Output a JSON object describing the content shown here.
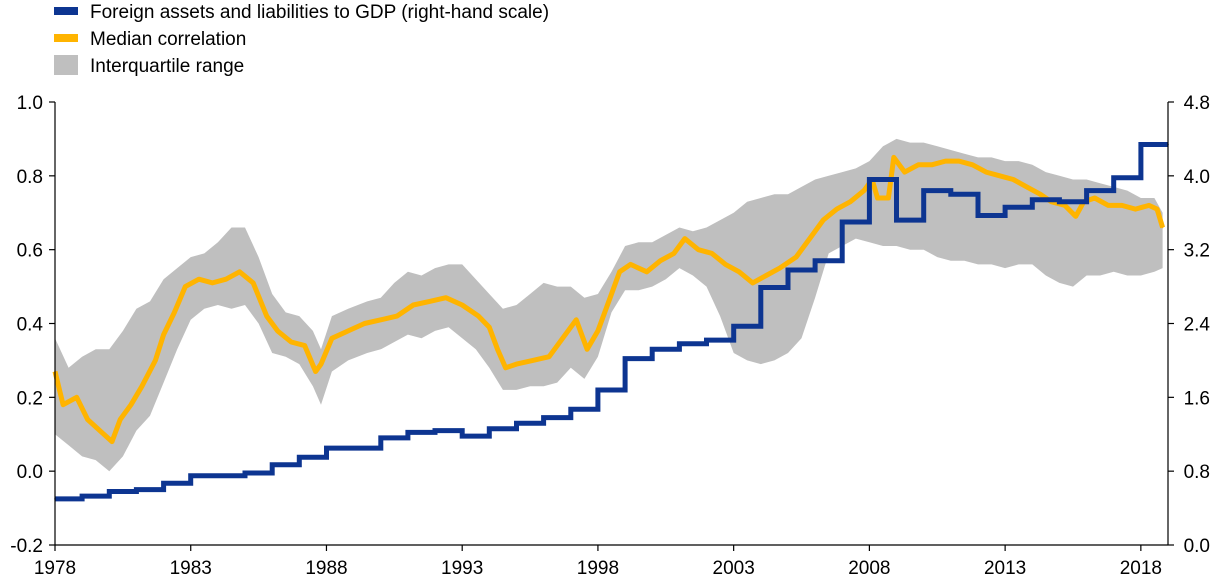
{
  "chart_data": {
    "type": "line",
    "legend_position": "top-left",
    "grid": false,
    "x_axis": {
      "range": [
        1978,
        2019
      ],
      "ticks": [
        "1978",
        "1983",
        "1988",
        "1993",
        "1998",
        "2003",
        "2008",
        "2013",
        "2018"
      ]
    },
    "y_left": {
      "range": [
        -0.2,
        1.0
      ],
      "ticks": [
        "1.0",
        "0.8",
        "0.6",
        "0.4",
        "0.2",
        "0.0",
        "-0.2"
      ]
    },
    "y_right": {
      "range": [
        0.0,
        4.8
      ],
      "ticks": [
        "4.8",
        "4.0",
        "3.2",
        "2.4",
        "1.6",
        "0.8",
        "0.0"
      ]
    },
    "series": [
      {
        "name": "Foreign assets and liabilities to GDP (right-hand scale)",
        "kind": "step",
        "axis": "right",
        "color": "#0d3591",
        "steps": [
          [
            1978.0,
            0.5
          ],
          [
            1979.0,
            0.53
          ],
          [
            1980.0,
            0.58
          ],
          [
            1981.0,
            0.6
          ],
          [
            1982.0,
            0.67
          ],
          [
            1983.0,
            0.75
          ],
          [
            1985.0,
            0.78
          ],
          [
            1986.0,
            0.87
          ],
          [
            1987.0,
            0.95
          ],
          [
            1988.0,
            1.05
          ],
          [
            1990.0,
            1.16
          ],
          [
            1991.0,
            1.22
          ],
          [
            1992.0,
            1.24
          ],
          [
            1993.0,
            1.18
          ],
          [
            1994.0,
            1.26
          ],
          [
            1995.0,
            1.32
          ],
          [
            1996.0,
            1.38
          ],
          [
            1997.0,
            1.47
          ],
          [
            1998.0,
            1.68
          ],
          [
            1999.0,
            2.02
          ],
          [
            2000.0,
            2.12
          ],
          [
            2001.0,
            2.18
          ],
          [
            2002.0,
            2.22
          ],
          [
            2003.0,
            2.37
          ],
          [
            2004.0,
            2.79
          ],
          [
            2005.0,
            2.98
          ],
          [
            2006.0,
            3.08
          ],
          [
            2007.0,
            3.5
          ],
          [
            2008.0,
            3.96
          ],
          [
            2009.0,
            3.52
          ],
          [
            2010.0,
            3.84
          ],
          [
            2011.0,
            3.8
          ],
          [
            2012.0,
            3.57
          ],
          [
            2013.0,
            3.66
          ],
          [
            2014.0,
            3.74
          ],
          [
            2015.0,
            3.72
          ],
          [
            2016.0,
            3.84
          ],
          [
            2017.0,
            3.98
          ],
          [
            2018.0,
            4.34
          ],
          [
            2019.0,
            4.34
          ]
        ]
      },
      {
        "name": "Median correlation",
        "kind": "line",
        "axis": "left",
        "color": "#ffb400",
        "points": [
          [
            1978.0,
            0.27
          ],
          [
            1978.3,
            0.18
          ],
          [
            1978.8,
            0.2
          ],
          [
            1979.2,
            0.14
          ],
          [
            1979.8,
            0.1
          ],
          [
            1980.1,
            0.08
          ],
          [
            1980.4,
            0.14
          ],
          [
            1980.8,
            0.18
          ],
          [
            1981.2,
            0.23
          ],
          [
            1981.7,
            0.3
          ],
          [
            1982.0,
            0.37
          ],
          [
            1982.4,
            0.43
          ],
          [
            1982.8,
            0.5
          ],
          [
            1983.3,
            0.52
          ],
          [
            1983.8,
            0.51
          ],
          [
            1984.3,
            0.52
          ],
          [
            1984.8,
            0.54
          ],
          [
            1985.3,
            0.51
          ],
          [
            1985.8,
            0.42
          ],
          [
            1986.2,
            0.38
          ],
          [
            1986.7,
            0.35
          ],
          [
            1987.2,
            0.34
          ],
          [
            1987.6,
            0.27
          ],
          [
            1987.8,
            0.29
          ],
          [
            1988.2,
            0.36
          ],
          [
            1988.8,
            0.38
          ],
          [
            1989.4,
            0.4
          ],
          [
            1990.0,
            0.41
          ],
          [
            1990.6,
            0.42
          ],
          [
            1991.2,
            0.45
          ],
          [
            1991.8,
            0.46
          ],
          [
            1992.4,
            0.47
          ],
          [
            1993.0,
            0.45
          ],
          [
            1993.6,
            0.42
          ],
          [
            1994.0,
            0.39
          ],
          [
            1994.3,
            0.33
          ],
          [
            1994.6,
            0.28
          ],
          [
            1995.0,
            0.29
          ],
          [
            1995.6,
            0.3
          ],
          [
            1996.2,
            0.31
          ],
          [
            1996.7,
            0.36
          ],
          [
            1997.2,
            0.41
          ],
          [
            1997.6,
            0.33
          ],
          [
            1998.0,
            0.38
          ],
          [
            1998.4,
            0.46
          ],
          [
            1998.8,
            0.54
          ],
          [
            1999.2,
            0.56
          ],
          [
            1999.8,
            0.54
          ],
          [
            2000.3,
            0.57
          ],
          [
            2000.8,
            0.59
          ],
          [
            2001.2,
            0.63
          ],
          [
            2001.7,
            0.6
          ],
          [
            2002.2,
            0.59
          ],
          [
            2002.7,
            0.56
          ],
          [
            2003.2,
            0.54
          ],
          [
            2003.7,
            0.51
          ],
          [
            2004.2,
            0.53
          ],
          [
            2004.7,
            0.55
          ],
          [
            2005.3,
            0.58
          ],
          [
            2005.8,
            0.63
          ],
          [
            2006.3,
            0.68
          ],
          [
            2006.8,
            0.71
          ],
          [
            2007.3,
            0.73
          ],
          [
            2007.8,
            0.76
          ],
          [
            2008.1,
            0.79
          ],
          [
            2008.3,
            0.74
          ],
          [
            2008.7,
            0.74
          ],
          [
            2008.9,
            0.85
          ],
          [
            2009.3,
            0.81
          ],
          [
            2009.8,
            0.83
          ],
          [
            2010.3,
            0.83
          ],
          [
            2010.8,
            0.84
          ],
          [
            2011.3,
            0.84
          ],
          [
            2011.8,
            0.83
          ],
          [
            2012.3,
            0.81
          ],
          [
            2012.8,
            0.8
          ],
          [
            2013.3,
            0.79
          ],
          [
            2013.8,
            0.77
          ],
          [
            2014.3,
            0.75
          ],
          [
            2014.7,
            0.73
          ],
          [
            2015.2,
            0.72
          ],
          [
            2015.6,
            0.69
          ],
          [
            2015.9,
            0.73
          ],
          [
            2016.3,
            0.74
          ],
          [
            2016.8,
            0.72
          ],
          [
            2017.3,
            0.72
          ],
          [
            2017.8,
            0.71
          ],
          [
            2018.3,
            0.72
          ],
          [
            2018.6,
            0.71
          ],
          [
            2018.8,
            0.66
          ]
        ]
      },
      {
        "name": "Interquartile range",
        "kind": "band",
        "axis": "left",
        "color": "#bfbfbf",
        "upper": [
          [
            1978.0,
            0.36
          ],
          [
            1978.5,
            0.28
          ],
          [
            1979.0,
            0.31
          ],
          [
            1979.5,
            0.33
          ],
          [
            1980.0,
            0.33
          ],
          [
            1980.5,
            0.38
          ],
          [
            1981.0,
            0.44
          ],
          [
            1981.5,
            0.46
          ],
          [
            1982.0,
            0.52
          ],
          [
            1982.5,
            0.55
          ],
          [
            1983.0,
            0.58
          ],
          [
            1983.5,
            0.59
          ],
          [
            1984.0,
            0.62
          ],
          [
            1984.5,
            0.66
          ],
          [
            1985.0,
            0.66
          ],
          [
            1985.5,
            0.58
          ],
          [
            1986.0,
            0.48
          ],
          [
            1986.5,
            0.43
          ],
          [
            1987.0,
            0.42
          ],
          [
            1987.5,
            0.38
          ],
          [
            1987.8,
            0.33
          ],
          [
            1988.2,
            0.42
          ],
          [
            1988.8,
            0.44
          ],
          [
            1989.5,
            0.46
          ],
          [
            1990.0,
            0.47
          ],
          [
            1990.5,
            0.51
          ],
          [
            1991.0,
            0.54
          ],
          [
            1991.5,
            0.53
          ],
          [
            1992.0,
            0.55
          ],
          [
            1992.5,
            0.56
          ],
          [
            1993.0,
            0.56
          ],
          [
            1993.5,
            0.52
          ],
          [
            1994.0,
            0.48
          ],
          [
            1994.5,
            0.44
          ],
          [
            1995.0,
            0.45
          ],
          [
            1995.5,
            0.48
          ],
          [
            1996.0,
            0.51
          ],
          [
            1996.5,
            0.5
          ],
          [
            1997.0,
            0.5
          ],
          [
            1997.5,
            0.47
          ],
          [
            1998.0,
            0.48
          ],
          [
            1998.5,
            0.54
          ],
          [
            1999.0,
            0.61
          ],
          [
            1999.5,
            0.62
          ],
          [
            2000.0,
            0.62
          ],
          [
            2000.5,
            0.64
          ],
          [
            2001.0,
            0.66
          ],
          [
            2001.5,
            0.65
          ],
          [
            2002.0,
            0.66
          ],
          [
            2002.5,
            0.68
          ],
          [
            2003.0,
            0.7
          ],
          [
            2003.5,
            0.73
          ],
          [
            2004.0,
            0.74
          ],
          [
            2004.5,
            0.75
          ],
          [
            2005.0,
            0.75
          ],
          [
            2005.5,
            0.77
          ],
          [
            2006.0,
            0.79
          ],
          [
            2006.5,
            0.8
          ],
          [
            2007.0,
            0.81
          ],
          [
            2007.5,
            0.82
          ],
          [
            2008.0,
            0.84
          ],
          [
            2008.5,
            0.88
          ],
          [
            2009.0,
            0.9
          ],
          [
            2009.5,
            0.89
          ],
          [
            2010.0,
            0.89
          ],
          [
            2010.5,
            0.88
          ],
          [
            2011.0,
            0.87
          ],
          [
            2011.5,
            0.86
          ],
          [
            2012.0,
            0.85
          ],
          [
            2012.5,
            0.85
          ],
          [
            2013.0,
            0.84
          ],
          [
            2013.5,
            0.84
          ],
          [
            2014.0,
            0.83
          ],
          [
            2014.5,
            0.81
          ],
          [
            2015.0,
            0.8
          ],
          [
            2015.5,
            0.79
          ],
          [
            2016.0,
            0.79
          ],
          [
            2016.5,
            0.78
          ],
          [
            2017.0,
            0.77
          ],
          [
            2017.5,
            0.76
          ],
          [
            2018.0,
            0.74
          ],
          [
            2018.5,
            0.74
          ],
          [
            2018.8,
            0.7
          ]
        ],
        "lower": [
          [
            1978.0,
            0.1
          ],
          [
            1978.5,
            0.07
          ],
          [
            1979.0,
            0.04
          ],
          [
            1979.5,
            0.03
          ],
          [
            1980.0,
            0.0
          ],
          [
            1980.5,
            0.04
          ],
          [
            1981.0,
            0.11
          ],
          [
            1981.5,
            0.15
          ],
          [
            1982.0,
            0.24
          ],
          [
            1982.5,
            0.33
          ],
          [
            1983.0,
            0.41
          ],
          [
            1983.5,
            0.44
          ],
          [
            1984.0,
            0.45
          ],
          [
            1984.5,
            0.44
          ],
          [
            1985.0,
            0.45
          ],
          [
            1985.5,
            0.4
          ],
          [
            1986.0,
            0.32
          ],
          [
            1986.5,
            0.31
          ],
          [
            1987.0,
            0.29
          ],
          [
            1987.5,
            0.23
          ],
          [
            1987.8,
            0.18
          ],
          [
            1988.2,
            0.27
          ],
          [
            1988.8,
            0.3
          ],
          [
            1989.5,
            0.32
          ],
          [
            1990.0,
            0.33
          ],
          [
            1990.5,
            0.35
          ],
          [
            1991.0,
            0.37
          ],
          [
            1991.5,
            0.36
          ],
          [
            1992.0,
            0.38
          ],
          [
            1992.5,
            0.39
          ],
          [
            1993.0,
            0.36
          ],
          [
            1993.5,
            0.33
          ],
          [
            1994.0,
            0.28
          ],
          [
            1994.5,
            0.22
          ],
          [
            1995.0,
            0.22
          ],
          [
            1995.5,
            0.23
          ],
          [
            1996.0,
            0.23
          ],
          [
            1996.5,
            0.24
          ],
          [
            1997.0,
            0.28
          ],
          [
            1997.5,
            0.25
          ],
          [
            1998.0,
            0.31
          ],
          [
            1998.5,
            0.43
          ],
          [
            1999.0,
            0.49
          ],
          [
            1999.5,
            0.49
          ],
          [
            2000.0,
            0.5
          ],
          [
            2000.5,
            0.52
          ],
          [
            2001.0,
            0.55
          ],
          [
            2001.5,
            0.53
          ],
          [
            2002.0,
            0.5
          ],
          [
            2002.5,
            0.42
          ],
          [
            2003.0,
            0.32
          ],
          [
            2003.5,
            0.3
          ],
          [
            2004.0,
            0.29
          ],
          [
            2004.5,
            0.3
          ],
          [
            2005.0,
            0.32
          ],
          [
            2005.5,
            0.36
          ],
          [
            2006.0,
            0.47
          ],
          [
            2006.5,
            0.59
          ],
          [
            2007.0,
            0.61
          ],
          [
            2007.5,
            0.63
          ],
          [
            2008.0,
            0.62
          ],
          [
            2008.5,
            0.61
          ],
          [
            2009.0,
            0.61
          ],
          [
            2009.5,
            0.6
          ],
          [
            2010.0,
            0.6
          ],
          [
            2010.5,
            0.58
          ],
          [
            2011.0,
            0.57
          ],
          [
            2011.5,
            0.57
          ],
          [
            2012.0,
            0.56
          ],
          [
            2012.5,
            0.56
          ],
          [
            2013.0,
            0.55
          ],
          [
            2013.5,
            0.56
          ],
          [
            2014.0,
            0.56
          ],
          [
            2014.5,
            0.53
          ],
          [
            2015.0,
            0.51
          ],
          [
            2015.5,
            0.5
          ],
          [
            2016.0,
            0.53
          ],
          [
            2016.5,
            0.53
          ],
          [
            2017.0,
            0.54
          ],
          [
            2017.5,
            0.53
          ],
          [
            2018.0,
            0.53
          ],
          [
            2018.5,
            0.54
          ],
          [
            2018.8,
            0.55
          ]
        ]
      }
    ]
  }
}
